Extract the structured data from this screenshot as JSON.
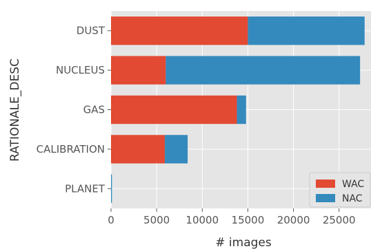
{
  "chart_data": {
    "type": "bar",
    "orientation": "horizontal",
    "stacked": true,
    "categories": [
      "DUST",
      "NUCLEUS",
      "GAS",
      "CALIBRATION",
      "PLANET"
    ],
    "series": [
      {
        "name": "WAC",
        "color": "#E24A33",
        "values": [
          15000,
          6000,
          13800,
          5900,
          0
        ]
      },
      {
        "name": "NAC",
        "color": "#348ABD",
        "values": [
          12800,
          21300,
          1000,
          2500,
          100
        ]
      }
    ],
    "xlabel": "# images",
    "ylabel": "RATIONALE_DESC",
    "xlim": [
      0,
      28500
    ],
    "xticks": [
      0,
      5000,
      10000,
      15000,
      20000,
      25000
    ],
    "xtick_labels": [
      "0",
      "5000",
      "10000",
      "15000",
      "20000",
      "25000"
    ],
    "grid": true,
    "legend_position": "lower right",
    "background": "#E5E5E5",
    "grid_color": "#FFFFFF"
  }
}
